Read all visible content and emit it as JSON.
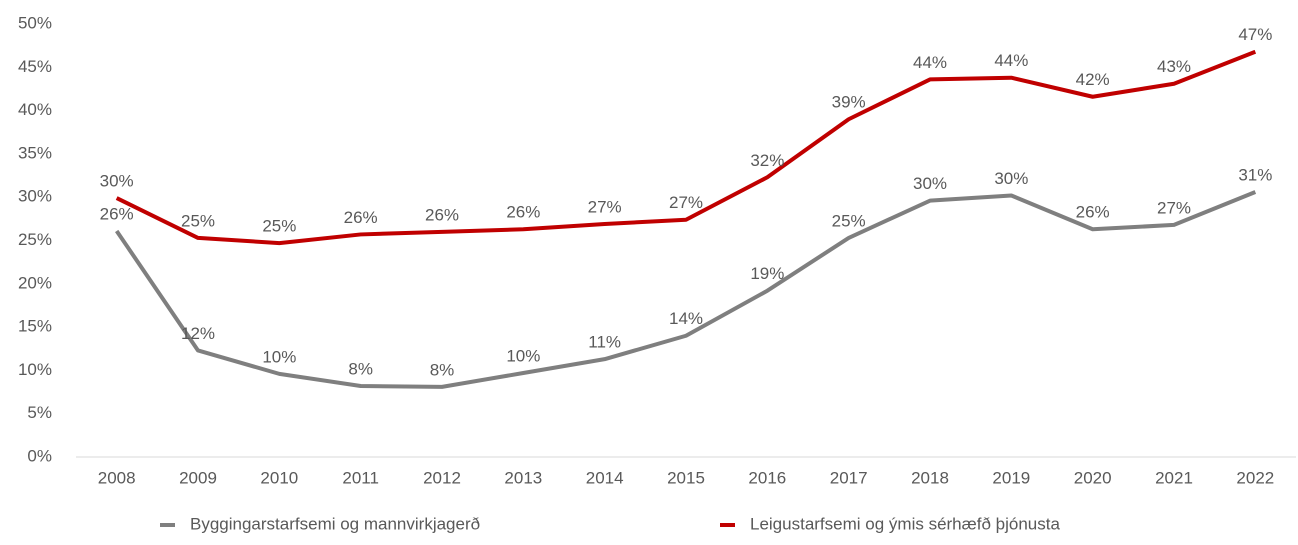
{
  "chart_data": {
    "type": "line",
    "categories": [
      "2008",
      "2009",
      "2010",
      "2011",
      "2012",
      "2013",
      "2014",
      "2015",
      "2016",
      "2017",
      "2018",
      "2019",
      "2020",
      "2021",
      "2022"
    ],
    "series": [
      {
        "name": "Byggingarstarfsemi og mannvirkjagerð",
        "color": "#7f7f7f",
        "values": [
          26.1,
          12.3,
          9.6,
          8.2,
          8.1,
          9.7,
          11.3,
          14.0,
          19.2,
          25.3,
          29.6,
          30.2,
          26.3,
          26.8,
          30.6
        ],
        "value_labels": [
          "26%",
          "12%",
          "10%",
          "8%",
          "8%",
          "10%",
          "11%",
          "14%",
          "19%",
          "25%",
          "30%",
          "30%",
          "26%",
          "27%",
          "31%"
        ]
      },
      {
        "name": "Leigustarfsemi og ýmis sérhæfð þjónusta",
        "color": "#c00000",
        "values": [
          29.9,
          25.3,
          24.7,
          25.7,
          26.0,
          26.3,
          26.9,
          27.4,
          32.3,
          39.0,
          43.6,
          43.8,
          41.6,
          43.1,
          46.8
        ],
        "value_labels": [
          "30%",
          "25%",
          "25%",
          "26%",
          "26%",
          "26%",
          "27%",
          "27%",
          "32%",
          "39%",
          "44%",
          "44%",
          "42%",
          "43%",
          "47%"
        ]
      }
    ],
    "ylim": [
      0,
      50
    ],
    "yticks": [
      {
        "value": 0,
        "label": "0%"
      },
      {
        "value": 5,
        "label": "5%"
      },
      {
        "value": 10,
        "label": "10%"
      },
      {
        "value": 15,
        "label": "15%"
      },
      {
        "value": 20,
        "label": "20%"
      },
      {
        "value": 25,
        "label": "25%"
      },
      {
        "value": 30,
        "label": "30%"
      },
      {
        "value": 35,
        "label": "35%"
      },
      {
        "value": 40,
        "label": "40%"
      },
      {
        "value": 45,
        "label": "45%"
      },
      {
        "value": 50,
        "label": "50%"
      }
    ],
    "grid": false,
    "legend": "bottom"
  }
}
